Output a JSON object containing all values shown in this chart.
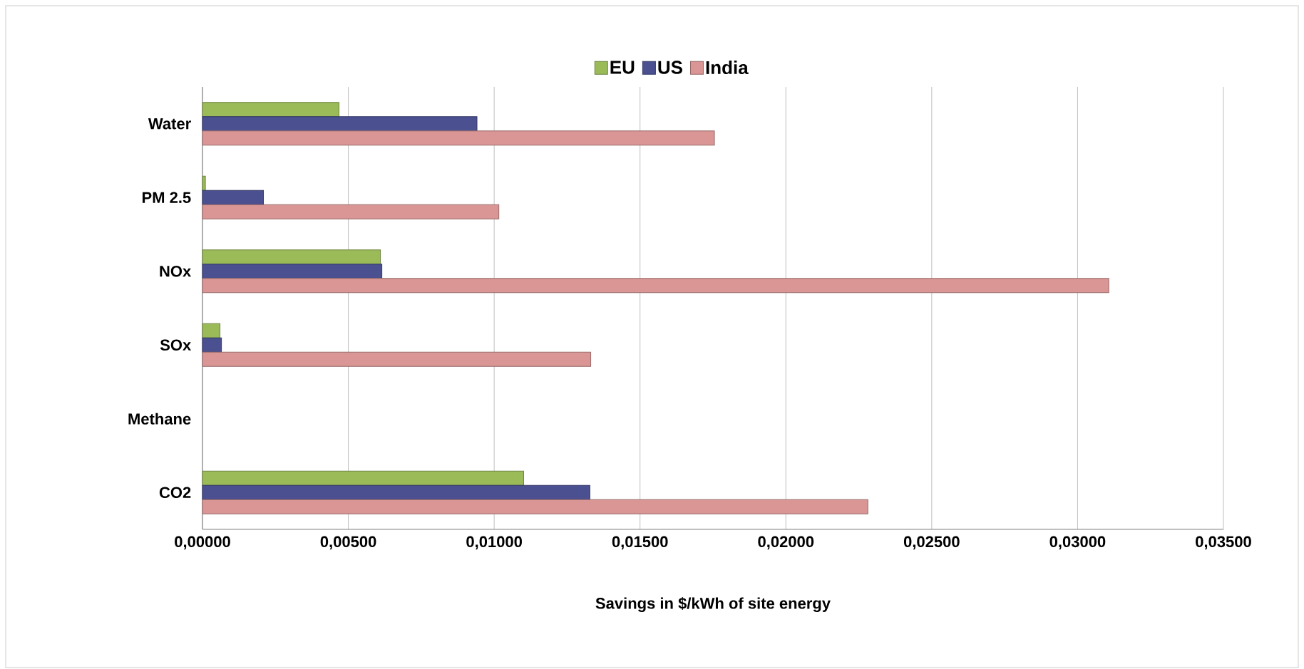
{
  "chart_data": {
    "type": "bar",
    "orientation": "horizontal",
    "categories": [
      "Water",
      "PM 2.5",
      "NOx",
      "SOx",
      "Methane",
      "CO2"
    ],
    "series": [
      {
        "name": "EU",
        "color": "#9bbb59",
        "values": [
          0.00468,
          0.0001,
          0.0061,
          0.0006,
          0,
          0.01101
        ]
      },
      {
        "name": "US",
        "color": "#4a5090",
        "values": [
          0.00941,
          0.00209,
          0.00615,
          0.00065,
          0,
          0.01328
        ]
      },
      {
        "name": "India",
        "color": "#d99694",
        "values": [
          0.01755,
          0.01016,
          0.03107,
          0.01331,
          0,
          0.02281
        ]
      }
    ],
    "xlim": [
      0,
      0.035
    ],
    "xticks": [
      {
        "value": 0,
        "label": "0,00000"
      },
      {
        "value": 0.005,
        "label": "0,00500"
      },
      {
        "value": 0.01,
        "label": "0,01000"
      },
      {
        "value": 0.015,
        "label": "0,01500"
      },
      {
        "value": 0.02,
        "label": "0,02000"
      },
      {
        "value": 0.025,
        "label": "0,02500"
      },
      {
        "value": 0.03,
        "label": "0,03000"
      },
      {
        "value": 0.035,
        "label": "0,03500"
      }
    ],
    "xlabel": "Savings in $/kWh of site energy",
    "grid": "x",
    "legend": "top"
  }
}
